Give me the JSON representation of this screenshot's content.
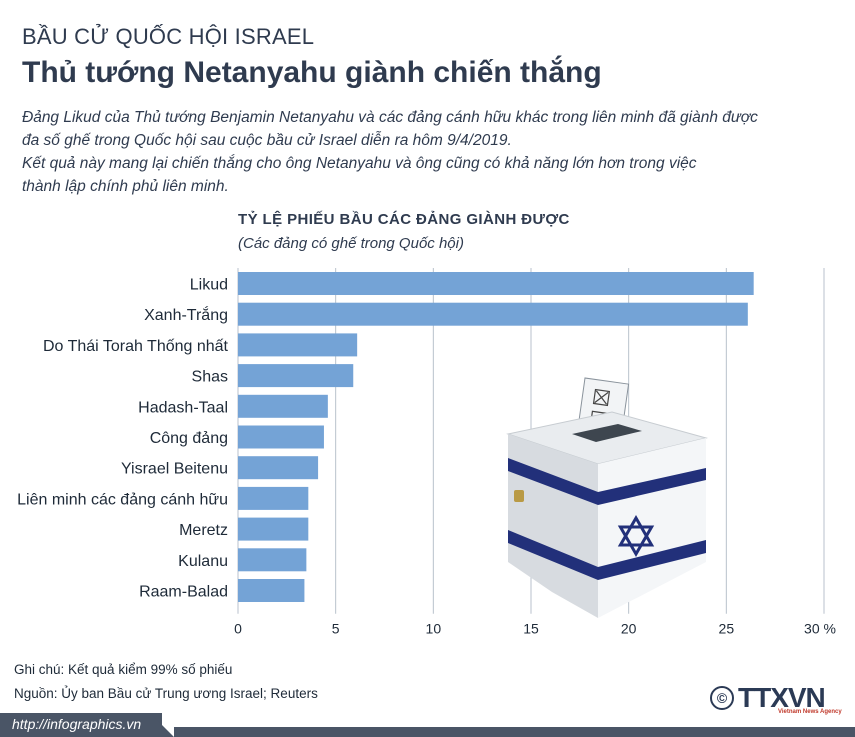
{
  "header": {
    "kicker": "BẦU CỬ QUỐC HỘI ISRAEL",
    "headline": "Thủ tướng Netanyahu giành chiến thắng"
  },
  "intro": {
    "p1_line1": "Đảng Likud của Thủ tướng Benjamin Netanyahu và các đảng cánh hữu khác trong liên minh đã giành được",
    "p1_line2": "đa số ghế trong Quốc hội sau cuộc bầu cử Israel diễn ra hôm 9/4/2019.",
    "p2_line1": "Kết quả này mang lại chiến thắng cho ông Netanyahu và ông cũng có khả năng lớn hơn trong việc",
    "p2_line2": "thành lập chính phủ liên minh."
  },
  "chart_data": {
    "type": "bar",
    "orientation": "horizontal",
    "title": "TỶ LỆ PHIẾU BẦU CÁC ĐẢNG GIÀNH ĐƯỢC",
    "subtitle": "(Các đảng có ghế trong Quốc hội)",
    "categories": [
      "Likud",
      "Xanh-Trắng",
      "Do Thái Torah Thống nhất",
      "Shas",
      "Hadash-Taal",
      "Công đảng",
      "Yisrael Beitenu",
      "Liên minh các đảng cánh hữu",
      "Meretz",
      "Kulanu",
      "Raam-Balad"
    ],
    "values": [
      26.4,
      26.1,
      6.1,
      5.9,
      4.6,
      4.4,
      4.1,
      3.6,
      3.6,
      3.5,
      3.4
    ],
    "xlim": [
      0,
      30
    ],
    "xticks": [
      "0",
      "5",
      "10",
      "15",
      "20",
      "25",
      "30 %"
    ],
    "grid": true,
    "bar_color": "#74a3d6",
    "grid_color": "#b9c2cc"
  },
  "illustration": {
    "icon": "ballot-box-icon"
  },
  "notes": {
    "note": "Ghi chú: Kết quả kiểm 99% số phiếu",
    "source": "Nguồn: Ủy ban Bầu cử Trung ương Israel; Reuters"
  },
  "footer": {
    "url": "http://infographics.vn",
    "copyright": "©",
    "logo": "TTXVN",
    "logo_sub": "Vietnam News Agency"
  }
}
